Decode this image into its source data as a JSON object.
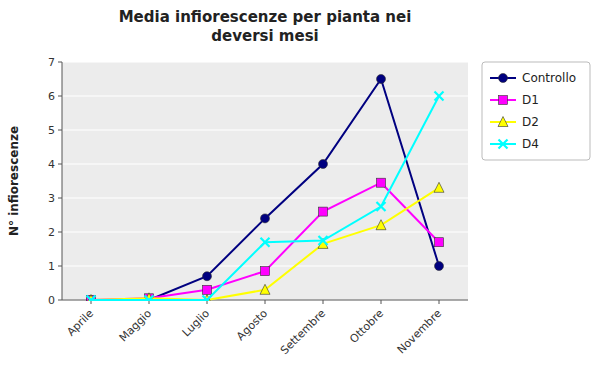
{
  "chart_data": {
    "type": "line",
    "title": "Media infiorescenze per pianta nei\ndeversi mesi",
    "y_label": "N° infiorescenze",
    "categories": [
      "Aprile",
      "Maggio",
      "Luglio",
      "Agosto",
      "Settembre",
      "Ottobre",
      "Novembre"
    ],
    "series": [
      {
        "name": "Controllo",
        "color": "#000080",
        "marker": "circle",
        "values": [
          0.0,
          0.0,
          0.7,
          2.4,
          4.0,
          6.5,
          1.0
        ]
      },
      {
        "name": "D1",
        "color": "#FF00FF",
        "marker": "square",
        "values": [
          0.0,
          0.05,
          0.3,
          0.85,
          2.6,
          3.45,
          1.7
        ]
      },
      {
        "name": "D2",
        "color": "#FFFF00",
        "marker": "triangle",
        "values": [
          0.0,
          0.05,
          0.0,
          0.3,
          1.65,
          2.2,
          3.3
        ]
      },
      {
        "name": "D4",
        "color": "#00FFFF",
        "marker": "x",
        "values": [
          0.0,
          0.0,
          0.0,
          1.7,
          1.75,
          2.75,
          6.0
        ]
      }
    ],
    "ylim": [
      0,
      7
    ],
    "yticks": [
      0,
      1,
      2,
      3,
      4,
      5,
      6,
      7
    ],
    "grid": true,
    "legend": "right"
  }
}
